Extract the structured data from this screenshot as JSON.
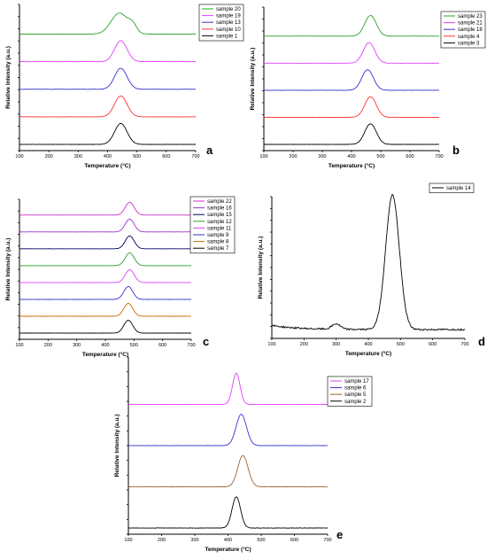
{
  "chart_data": [
    {
      "panel": "a",
      "type": "line",
      "xlabel": "Temperature (°C)",
      "ylabel": "Relative Intensity (a.u.)",
      "xlim": [
        100,
        700
      ],
      "xticks": [
        100,
        200,
        300,
        400,
        500,
        600,
        700
      ],
      "stacked": true,
      "legend_position": "top-right",
      "series": [
        {
          "name": "sample 20",
          "color": "#2ca02c",
          "peak_x": 440,
          "peak_height": 0.8,
          "width": 40,
          "shoulder": true
        },
        {
          "name": "sample 19",
          "color": "#e040fb",
          "peak_x": 445,
          "peak_height": 0.8,
          "width": 30
        },
        {
          "name": "sample 13",
          "color": "#3333cc",
          "peak_x": 445,
          "peak_height": 0.8,
          "width": 30
        },
        {
          "name": "sample 10",
          "color": "#ff3333",
          "peak_x": 445,
          "peak_height": 0.8,
          "width": 30
        },
        {
          "name": "sample 1",
          "color": "#000000",
          "peak_x": 445,
          "peak_height": 0.8,
          "width": 30
        }
      ]
    },
    {
      "panel": "b",
      "type": "line",
      "xlabel": "Temperature (°C)",
      "ylabel": "Relative Intensity (a.u.)",
      "xlim": [
        100,
        700
      ],
      "xticks": [
        100,
        200,
        300,
        400,
        500,
        600,
        700
      ],
      "stacked": true,
      "legend_position": "top-right",
      "series": [
        {
          "name": "sample 23",
          "color": "#2ca02c",
          "peak_x": 465,
          "peak_height": 0.8,
          "width": 28
        },
        {
          "name": "sample 21",
          "color": "#e040fb",
          "peak_x": 460,
          "peak_height": 0.8,
          "width": 28
        },
        {
          "name": "sample 18",
          "color": "#3333cc",
          "peak_x": 455,
          "peak_height": 0.8,
          "width": 28
        },
        {
          "name": "sample 4",
          "color": "#ff3333",
          "peak_x": 465,
          "peak_height": 0.8,
          "width": 28
        },
        {
          "name": "sample 3",
          "color": "#000000",
          "peak_x": 465,
          "peak_height": 0.8,
          "width": 28
        }
      ]
    },
    {
      "panel": "c",
      "type": "line",
      "xlabel": "Temperature (°C)",
      "ylabel": "Relative Intensity (a.u.)",
      "xlim": [
        100,
        700
      ],
      "xticks": [
        100,
        200,
        300,
        400,
        500,
        600,
        700
      ],
      "stacked": true,
      "legend_position": "top-right",
      "series": [
        {
          "name": "sample 22",
          "color": "#cc33cc",
          "peak_x": 485,
          "peak_height": 0.8,
          "width": 22
        },
        {
          "name": "sample 16",
          "color": "#9933cc",
          "peak_x": 485,
          "peak_height": 0.8,
          "width": 22
        },
        {
          "name": "sample 15",
          "color": "#000066",
          "peak_x": 485,
          "peak_height": 0.8,
          "width": 22
        },
        {
          "name": "sample 12",
          "color": "#2ca02c",
          "peak_x": 485,
          "peak_height": 0.8,
          "width": 22
        },
        {
          "name": "sample 11",
          "color": "#e040fb",
          "peak_x": 485,
          "peak_height": 0.8,
          "width": 22
        },
        {
          "name": "sample 9",
          "color": "#3333cc",
          "peak_x": 480,
          "peak_height": 0.8,
          "width": 22
        },
        {
          "name": "sample 8",
          "color": "#cc6600",
          "peak_x": 480,
          "peak_height": 0.8,
          "width": 22
        },
        {
          "name": "sample 7",
          "color": "#000000",
          "peak_x": 480,
          "peak_height": 0.8,
          "width": 22
        }
      ]
    },
    {
      "panel": "d",
      "type": "line",
      "xlabel": "Temperature (°C)",
      "ylabel": "Relative Intensity (a.u.)",
      "xlim": [
        100,
        700
      ],
      "xticks": [
        100,
        200,
        300,
        400,
        500,
        600,
        700
      ],
      "stacked": false,
      "legend_position": "top-right",
      "series": [
        {
          "name": "sample 14",
          "color": "#000000",
          "peak_x": 475,
          "peak_height": 1.0,
          "width": 30,
          "minor_peak_x": 300
        }
      ]
    },
    {
      "panel": "e",
      "type": "line",
      "xlabel": "Temperature (°C)",
      "ylabel": "Relative Intensity (a.u.)",
      "xlim": [
        100,
        700
      ],
      "xticks": [
        100,
        200,
        300,
        400,
        500,
        600,
        700
      ],
      "stacked": true,
      "legend_position": "top-right",
      "series": [
        {
          "name": "sample 17",
          "color": "#e040fb",
          "peak_x": 425,
          "peak_height": 0.8,
          "width": 16
        },
        {
          "name": "sample 6",
          "color": "#3333cc",
          "peak_x": 440,
          "peak_height": 0.8,
          "width": 22
        },
        {
          "name": "sample 5",
          "color": "#996633",
          "peak_x": 445,
          "peak_height": 0.8,
          "width": 22
        },
        {
          "name": "sample 2",
          "color": "#000000",
          "peak_x": 425,
          "peak_height": 0.8,
          "width": 18
        }
      ]
    }
  ]
}
